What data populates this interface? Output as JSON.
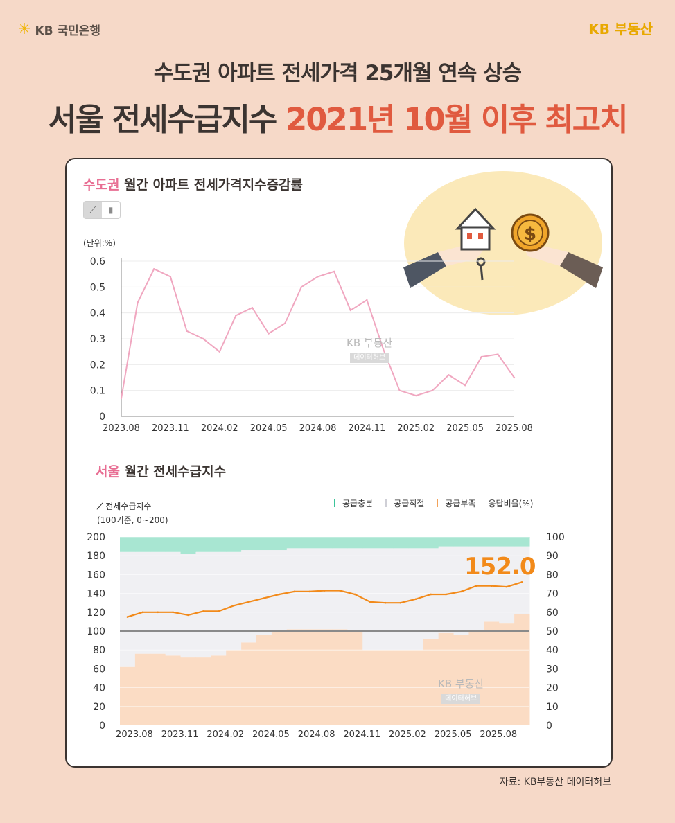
{
  "header": {
    "bank_logo": "KB 국민은행",
    "brand": "KB 부동산",
    "headline_line1": "수도권 아파트 전세가격 25개월 연속 상승",
    "headline_line2_part1": "서울 전세수급지수",
    "headline_line2_part2": "2021년 10월 이후 최고치"
  },
  "colors": {
    "background": "#f6d9c8",
    "accent_red": "#e05a3f",
    "pink_line": "#f0a7c0",
    "orange_line": "#f28a1a",
    "supply_excess": "#a8e6d2",
    "supply_adequate": "#f0f0f3",
    "supply_shortage": "#fbdcc4"
  },
  "chart1": {
    "title_highlight": "수도권",
    "title_rest": "월간 아파트 전세가격지수증감률",
    "toggle": {
      "line_icon": "line-chart-icon",
      "bar_icon": "bar-chart-icon"
    },
    "unit": "(단위:%)",
    "watermark_brand": "KB 부동산",
    "watermark_sub": "데이터허브"
  },
  "chart2": {
    "title_highlight": "서울",
    "title_rest": "월간 전세수급지수",
    "series_label": "전세수급지수",
    "series_sub": "(100기준, 0~200)",
    "legend": [
      "공급충분",
      "공급적절",
      "공급부족"
    ],
    "right_axis_label": "응답비율(%)",
    "callout": "152.0",
    "watermark_brand": "KB 부동산",
    "watermark_sub": "데이터허브"
  },
  "source": "자료: KB부동산 데이터허브",
  "chart_data": [
    {
      "type": "line",
      "x_ticks": [
        "2023.08",
        "2023.11",
        "2024.02",
        "2024.05",
        "2024.08",
        "2024.11",
        "2025.02",
        "2025.05",
        "2025.08"
      ],
      "y_ticks": [
        "0",
        "0.1",
        "0.2",
        "0.3",
        "0.4",
        "0.5",
        "0.6"
      ],
      "ylim": [
        0,
        0.6
      ],
      "grid": true,
      "series": [
        {
          "values": [
            0.07,
            0.44,
            0.57,
            0.54,
            0.33,
            0.3,
            0.25,
            0.39,
            0.42,
            0.32,
            0.36,
            0.5,
            0.54,
            0.56,
            0.41,
            0.45,
            0.26,
            0.1,
            0.08,
            0.1,
            0.16,
            0.12,
            0.23,
            0.24,
            0.15
          ]
        }
      ]
    },
    {
      "type": "bar",
      "x_ticks": [
        "2023.08",
        "2023.11",
        "2024.02",
        "2024.05",
        "2024.08",
        "2024.11",
        "2025.02",
        "2025.05",
        "2025.08"
      ],
      "left_ticks": [
        "0",
        "20",
        "40",
        "60",
        "80",
        "100",
        "120",
        "140",
        "160",
        "180",
        "200"
      ],
      "right_ticks": [
        "0",
        "10",
        "20",
        "30",
        "40",
        "50",
        "60",
        "70",
        "80",
        "90",
        "100"
      ],
      "ylim_left": [
        0,
        200
      ],
      "ylim_right": [
        0,
        100
      ],
      "reference_line": 100,
      "stacked_series": [
        {
          "name": "공급부족",
          "values": [
            31,
            38,
            38,
            37,
            36,
            36,
            37,
            40,
            44,
            48,
            50,
            51,
            51,
            51,
            51,
            50,
            40,
            40,
            40,
            40,
            46,
            49,
            48,
            50,
            55,
            54,
            59
          ]
        },
        {
          "name": "공급충분",
          "values": [
            8,
            8,
            8,
            8,
            9,
            8,
            8,
            8,
            7,
            7,
            7,
            6,
            6,
            6,
            6,
            6,
            6,
            6,
            6,
            6,
            6,
            5,
            5,
            5,
            5,
            5,
            5
          ]
        }
      ],
      "index_series": {
        "name": "전세수급지수",
        "values": [
          115,
          120,
          120,
          120,
          117,
          121,
          121,
          127,
          131,
          135,
          139,
          142,
          142,
          143,
          143,
          139,
          131,
          130,
          130,
          134,
          139,
          139,
          142,
          148,
          148,
          147,
          152
        ]
      }
    }
  ]
}
